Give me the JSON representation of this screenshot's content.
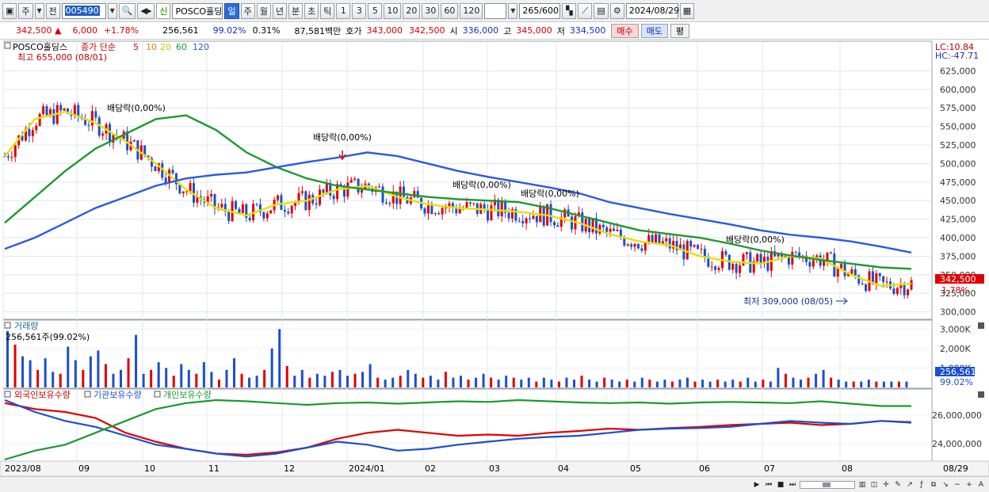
{
  "toolbar": {
    "period_type": "주",
    "prev_label": "전",
    "stock_code": "005490",
    "stock_name": "POSCO홀딩스",
    "badge_new": "신",
    "intervals": [
      "일",
      "주",
      "월",
      "년",
      "분",
      "초",
      "틱"
    ],
    "selected_interval": "일",
    "multipliers": [
      "1",
      "3",
      "5",
      "10",
      "20",
      "30",
      "60",
      "120"
    ],
    "count_value": "265",
    "count_total": "/600",
    "date": "2024/08/29"
  },
  "quote": {
    "price": "342,500",
    "change": "6,000",
    "change_pct": "+1.78%",
    "volume": "256,561",
    "volume_pct": "99.02%",
    "turnover_pct": "0.31%",
    "amount": "87,581백만",
    "bid_label": "호가",
    "ask_price": "343,000",
    "bid_price": "342,500",
    "open_label": "시",
    "open": "336,000",
    "high_label": "고",
    "high": "345,000",
    "low_label": "저",
    "low": "334,500",
    "buy_label": "매수",
    "sell_label": "매도",
    "eval_label": "평"
  },
  "price_pane": {
    "legend_name": "POSCO홀딩스",
    "legend_type": "종가 단순",
    "ma_periods": [
      "5",
      "10",
      "20",
      "60",
      "120"
    ],
    "high_note": "최고 655,000 (08/01)",
    "low_note": "최저 309,000 (08/05)",
    "lc": "LC:10.84",
    "hc": "HC:-47.71",
    "current_tag": "342,500",
    "current_pct": "1.78%",
    "dividend_label": "배당락(0,00%)",
    "colors": {
      "up": "#e00000",
      "down": "#1a4fd0",
      "ma5": "#e00000",
      "ma10": "#f08000",
      "ma20": "#e8e000",
      "ma60": "#1a9a30",
      "ma120": "#2a5ae0"
    }
  },
  "volume_pane": {
    "title": "거래량",
    "value_note": "256,561주(99.02%)",
    "current_tag": "256,561",
    "current_pct": "99.02%"
  },
  "holdings_pane": {
    "legends": [
      "외국인보유수량",
      "기관보유수량",
      "개인보유수량"
    ]
  },
  "x_axis": {
    "labels": [
      "2023/08",
      "09",
      "10",
      "11",
      "12",
      "2024/01",
      "02",
      "03",
      "04",
      "05",
      "06",
      "07",
      "08"
    ],
    "right_date": "08/29"
  },
  "chart_data": {
    "type": "candlestick",
    "price_axis_ticks": [
      "625,000",
      "600,000",
      "575,000",
      "550,000",
      "525,000",
      "500,000",
      "475,000",
      "450,000",
      "425,000",
      "400,000",
      "375,000",
      "350,000",
      "325,000",
      "300,000"
    ],
    "volume_axis_ticks": [
      "3,000K",
      "2,000K",
      "1,000K"
    ],
    "holdings_axis_ticks": [
      "26,000,000",
      "24,000,000"
    ],
    "price_range": [
      290000,
      665000
    ],
    "series": [
      {
        "name": "20",
        "values": [
          510000,
          560000,
          570000,
          555000,
          530000,
          500000,
          465000,
          440000,
          430000,
          445000,
          450000,
          465000,
          470000,
          455000,
          445000,
          440000,
          438000,
          435000,
          430000,
          420000,
          405000,
          395000,
          390000,
          375000,
          368000,
          365000,
          375000,
          372000,
          350000,
          335000,
          338000
        ]
      },
      {
        "name": "60",
        "values": [
          420000,
          455000,
          490000,
          520000,
          540000,
          560000,
          565000,
          545000,
          515000,
          495000,
          480000,
          470000,
          465000,
          460000,
          455000,
          452000,
          450000,
          448000,
          440000,
          430000,
          420000,
          410000,
          405000,
          400000,
          392000,
          383000,
          376000,
          370000,
          365000,
          360000,
          358000
        ]
      },
      {
        "name": "120",
        "values": [
          385000,
          400000,
          420000,
          440000,
          455000,
          470000,
          480000,
          485000,
          488000,
          495000,
          502000,
          508000,
          515000,
          510000,
          500000,
          490000,
          482000,
          475000,
          468000,
          460000,
          448000,
          440000,
          432000,
          425000,
          418000,
          410000,
          404000,
          400000,
          395000,
          388000,
          380000
        ]
      }
    ],
    "volume_values": [
      2900,
      2200,
      1600,
      1400,
      900,
      1500,
      800,
      700,
      2100,
      1400,
      900,
      1600,
      1900,
      1200,
      700,
      900,
      1500,
      2700,
      700,
      900,
      1300,
      1000,
      600,
      1200,
      900,
      700,
      1300,
      800,
      400,
      900,
      1500,
      700,
      500,
      600,
      900,
      2000,
      3000,
      1100,
      600,
      900,
      500,
      700,
      600,
      800,
      900,
      600,
      700,
      800,
      1200,
      500,
      400,
      500,
      600,
      900,
      700,
      500,
      600,
      400,
      800,
      500,
      600,
      400,
      500,
      700,
      500,
      400,
      600,
      500,
      400,
      500,
      300,
      500,
      400,
      300,
      500,
      400,
      600,
      400,
      300,
      500,
      400,
      300,
      400,
      300,
      500,
      400,
      300,
      400,
      300,
      400,
      500,
      300,
      400,
      300,
      400,
      300,
      400,
      300,
      500,
      300,
      400,
      300,
      1000,
      700,
      500,
      400,
      500,
      700,
      900,
      500,
      400,
      300,
      300,
      300,
      400,
      300,
      300,
      300,
      300,
      300
    ]
  }
}
